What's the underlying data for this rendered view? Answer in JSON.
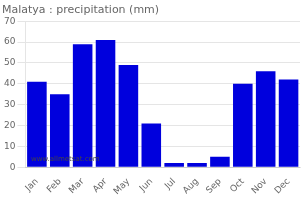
{
  "chart_data": {
    "type": "bar",
    "title": "Malatya : precipitation (mm)",
    "categories": [
      "Jan",
      "Feb",
      "Mar",
      "Apr",
      "May",
      "Jun",
      "Jul",
      "Aug",
      "Sep",
      "Oct",
      "Nov",
      "Dec"
    ],
    "values": [
      41,
      35,
      59,
      61,
      49,
      21,
      2,
      2,
      5,
      40,
      46,
      42
    ],
    "color": "#0000dd",
    "ylim": [
      0,
      70
    ],
    "yticks": [
      0,
      10,
      20,
      30,
      40,
      50,
      60,
      70
    ],
    "grid": true,
    "annotations": [
      "www.allmetsat.com"
    ]
  }
}
